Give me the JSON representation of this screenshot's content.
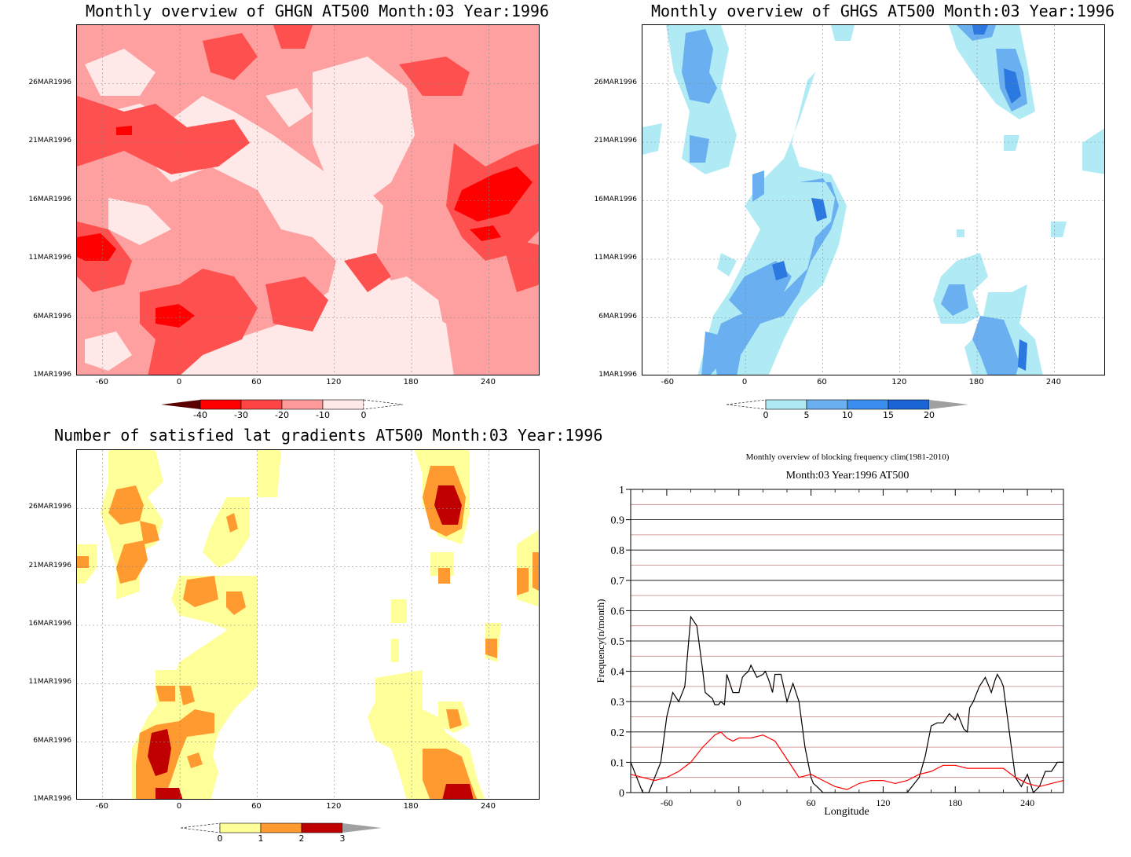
{
  "chart_data": [
    {
      "id": "ghgn",
      "type": "heatmap",
      "title": "Monthly overview of GHGN AT500 Month:03 Year:1996",
      "x_ticks": [
        "-60",
        "0",
        "60",
        "120",
        "180",
        "240"
      ],
      "x_tick_values": [
        -60,
        0,
        60,
        120,
        180,
        240
      ],
      "xlim": [
        -80,
        280
      ],
      "y_ticks": [
        "1MAR1996",
        "6MAR1996",
        "11MAR1996",
        "16MAR1996",
        "21MAR1996",
        "26MAR1996"
      ],
      "y_tick_values": [
        1,
        6,
        11,
        16,
        21,
        26
      ],
      "ylim": [
        1,
        31
      ],
      "colorbar": {
        "labels": [
          "-40",
          "-30",
          "-20",
          "-10",
          "0"
        ],
        "colors": [
          "#5a0000",
          "#ff0000",
          "#ff4444",
          "#ff9a9a",
          "#ffe8e8"
        ],
        "over_color": "#ffffff"
      },
      "colors": {
        "bg": "#ffe8e8",
        "l1": "#ffa0a0",
        "l2": "#ff5050",
        "l3": "#ff0000"
      }
    },
    {
      "id": "ghgs",
      "type": "heatmap",
      "title": "Monthly overview of GHGS AT500 Month:03 Year:1996",
      "x_ticks": [
        "-60",
        "0",
        "60",
        "120",
        "180",
        "240"
      ],
      "x_tick_values": [
        -60,
        0,
        60,
        120,
        180,
        240
      ],
      "xlim": [
        -80,
        280
      ],
      "y_ticks": [
        "1MAR1996",
        "6MAR1996",
        "11MAR1996",
        "16MAR1996",
        "21MAR1996",
        "26MAR1996"
      ],
      "y_tick_values": [
        1,
        6,
        11,
        16,
        21,
        26
      ],
      "ylim": [
        1,
        31
      ],
      "colorbar": {
        "labels": [
          "0",
          "5",
          "10",
          "15",
          "20"
        ],
        "colors": [
          "#ffffff",
          "#b0eaf5",
          "#6ab0f0",
          "#3a8ef0",
          "#1a64d6"
        ],
        "over_color": "#a0a0a0"
      },
      "colors": {
        "l1": "#b0eaf5",
        "l2": "#6ab0f0",
        "l3": "#2a78e0"
      }
    },
    {
      "id": "nsat",
      "type": "heatmap",
      "title": "Number of satisfied lat gradients AT500 Month:03 Year:1996",
      "x_ticks": [
        "-60",
        "0",
        "60",
        "120",
        "180",
        "240"
      ],
      "x_tick_values": [
        -60,
        0,
        60,
        120,
        180,
        240
      ],
      "xlim": [
        -80,
        280
      ],
      "y_ticks": [
        "1MAR1996",
        "6MAR1996",
        "11MAR1996",
        "16MAR1996",
        "21MAR1996",
        "26MAR1996"
      ],
      "y_tick_values": [
        1,
        6,
        11,
        16,
        21,
        26
      ],
      "ylim": [
        1,
        31
      ],
      "colorbar": {
        "labels": [
          "0",
          "1",
          "2",
          "3"
        ],
        "colors": [
          "#ffffff",
          "#ffff99",
          "#ff9a30",
          "#c00000"
        ],
        "over_color": "#a0a0a0"
      },
      "colors": {
        "l1": "#ffff99",
        "l2": "#ff9a30",
        "l3": "#c00000"
      }
    },
    {
      "id": "freq",
      "type": "line",
      "title": "Monthly overview of blocking frequency clim(1981-2010)",
      "subtitle": "Month:03 Year:1996  AT500",
      "xlabel": "Longitude",
      "ylabel": "Frequency(n/month)",
      "xlim": [
        -90,
        270
      ],
      "ylim": [
        0,
        1
      ],
      "x_ticks": [
        "-60",
        "0",
        "60",
        "120",
        "180",
        "240"
      ],
      "x_tick_values": [
        -60,
        0,
        60,
        120,
        180,
        240
      ],
      "y_ticks": [
        "0",
        "0.1",
        "0.2",
        "0.3",
        "0.4",
        "0.5",
        "0.6",
        "0.7",
        "0.8",
        "0.9",
        "1"
      ],
      "y_tick_values": [
        0,
        0.1,
        0.2,
        0.3,
        0.4,
        0.5,
        0.6,
        0.7,
        0.8,
        0.9,
        1
      ],
      "series": [
        {
          "color": "#000000",
          "x": [
            -90,
            -85,
            -80,
            -75,
            -70,
            -65,
            -60,
            -55,
            -50,
            -45,
            -40,
            -35,
            -30,
            -28,
            -25,
            -22,
            -20,
            -17,
            -15,
            -12,
            -10,
            -5,
            0,
            3,
            5,
            8,
            10,
            15,
            20,
            22,
            25,
            28,
            30,
            35,
            40,
            45,
            50,
            55,
            60,
            62,
            65,
            70,
            75,
            80,
            85,
            90,
            100,
            110,
            120,
            130,
            140,
            150,
            155,
            160,
            165,
            170,
            175,
            180,
            182,
            185,
            187,
            190,
            192,
            195,
            200,
            205,
            210,
            213,
            215,
            218,
            220,
            225,
            230,
            235,
            240,
            245,
            250,
            255,
            260,
            265,
            270
          ],
          "y": [
            0.1,
            0.05,
            0.0,
            0.0,
            0.05,
            0.1,
            0.25,
            0.33,
            0.3,
            0.35,
            0.58,
            0.55,
            0.4,
            0.33,
            0.32,
            0.31,
            0.29,
            0.29,
            0.3,
            0.29,
            0.39,
            0.33,
            0.33,
            0.38,
            0.39,
            0.4,
            0.42,
            0.38,
            0.39,
            0.4,
            0.37,
            0.33,
            0.39,
            0.39,
            0.3,
            0.36,
            0.3,
            0.15,
            0.05,
            0.03,
            0.02,
            0.0,
            0.0,
            0.0,
            0.0,
            0.0,
            0.0,
            0.0,
            0.0,
            0.0,
            0.0,
            0.05,
            0.12,
            0.22,
            0.23,
            0.23,
            0.26,
            0.24,
            0.26,
            0.23,
            0.21,
            0.2,
            0.28,
            0.3,
            0.35,
            0.38,
            0.33,
            0.37,
            0.39,
            0.37,
            0.35,
            0.2,
            0.05,
            0.02,
            0.06,
            0.0,
            0.02,
            0.07,
            0.07,
            0.1,
            0.1
          ]
        },
        {
          "color": "#ff0000",
          "x": [
            -90,
            -80,
            -70,
            -60,
            -50,
            -40,
            -30,
            -20,
            -15,
            -10,
            -5,
            0,
            10,
            20,
            30,
            40,
            50,
            60,
            70,
            80,
            90,
            100,
            110,
            120,
            130,
            140,
            150,
            160,
            170,
            180,
            190,
            200,
            210,
            220,
            230,
            240,
            250,
            260,
            270
          ],
          "y": [
            0.06,
            0.05,
            0.04,
            0.05,
            0.07,
            0.1,
            0.15,
            0.19,
            0.2,
            0.18,
            0.17,
            0.18,
            0.18,
            0.19,
            0.17,
            0.11,
            0.05,
            0.06,
            0.04,
            0.02,
            0.01,
            0.03,
            0.04,
            0.04,
            0.03,
            0.04,
            0.06,
            0.07,
            0.09,
            0.09,
            0.08,
            0.08,
            0.08,
            0.08,
            0.05,
            0.03,
            0.02,
            0.03,
            0.04
          ]
        }
      ]
    }
  ]
}
